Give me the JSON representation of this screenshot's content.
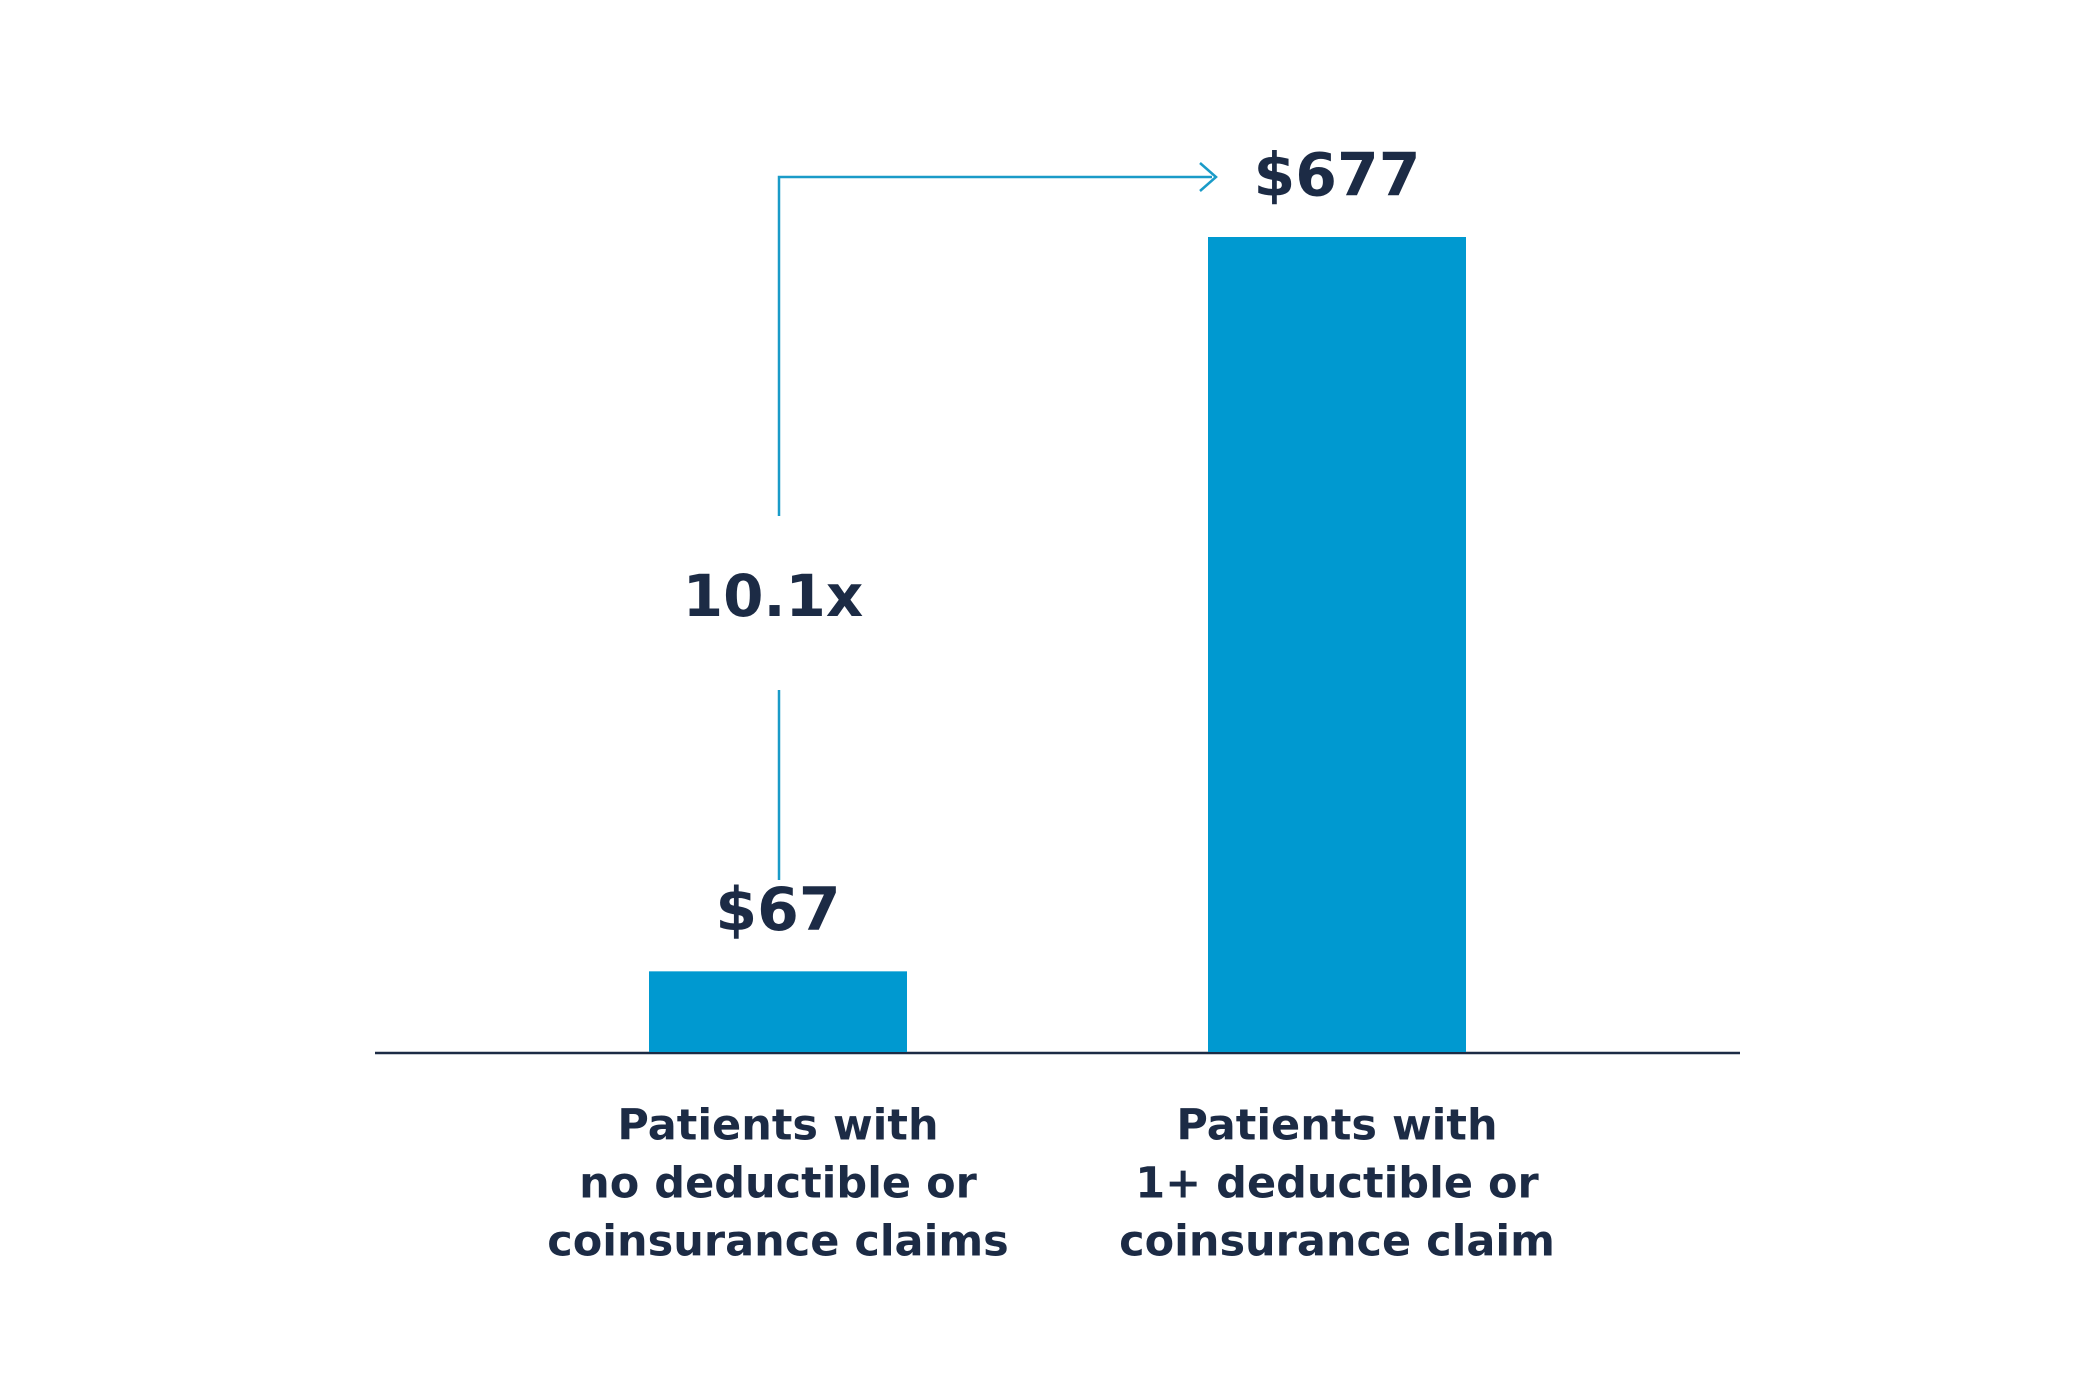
{
  "chart_data": {
    "type": "bar",
    "categories": [
      [
        "Patients with",
        "no deductible or",
        "coinsurance claims"
      ],
      [
        "Patients with",
        "1+ deductible or",
        "coinsurance claim"
      ]
    ],
    "values": [
      67,
      677
    ],
    "value_labels": [
      "$67",
      "$677"
    ],
    "color": "#0099d0",
    "annotation": "10.1x"
  }
}
